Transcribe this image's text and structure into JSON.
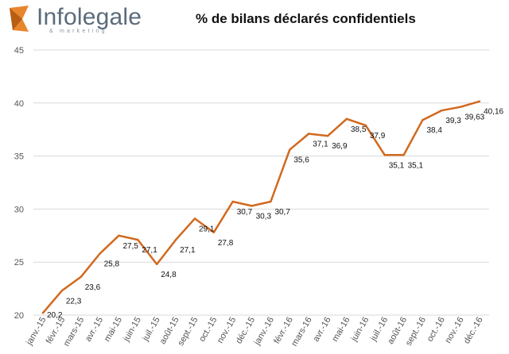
{
  "header": {
    "logo_brand": "Infolegale",
    "logo_tagline": "& marketing",
    "title": "% de bilans déclarés confidentiels"
  },
  "colors": {
    "line": "#d1691f",
    "grid": "#d9d9d9",
    "logo_accent": "#e8862e"
  },
  "chart_data": {
    "type": "line",
    "title": "% de bilans déclarés confidentiels",
    "xlabel": "",
    "ylabel": "",
    "ylim": [
      20,
      45
    ],
    "yticks": [
      20,
      25,
      30,
      35,
      40,
      45
    ],
    "grid": "horizontal",
    "categories": [
      "janv.-15",
      "févr.-15",
      "mars-15",
      "avr.-15",
      "mai-15",
      "juin-15",
      "juil.-15",
      "août-15",
      "sept.-15",
      "oct.-15",
      "nov.-15",
      "déc.-15",
      "janv.-16",
      "févr.-16",
      "mars-16",
      "avr.-16",
      "mai-16",
      "juin-16",
      "juil.-16",
      "août-16",
      "sept.-16",
      "oct.-16",
      "nov.-16",
      "déc.-16"
    ],
    "series": [
      {
        "values": [
          20.2,
          22.3,
          23.6,
          25.8,
          27.5,
          27.1,
          24.8,
          27.1,
          29.1,
          27.8,
          30.7,
          30.3,
          30.7,
          35.6,
          37.1,
          36.9,
          38.5,
          37.9,
          35.1,
          35.1,
          38.4,
          39.3,
          39.63,
          40.16
        ],
        "labels": [
          "20,2",
          "22,3",
          "23,6",
          "25,8",
          "27,5",
          "27,1",
          "24,8",
          "27,1",
          "29,1",
          "27,8",
          "30,7",
          "30,3",
          "30,7",
          "35,6",
          "37,1",
          "36,9",
          "38,5",
          "37,9",
          "35,1",
          "35,1",
          "38,4",
          "39,3",
          "39,63",
          "40,16"
        ]
      }
    ]
  }
}
